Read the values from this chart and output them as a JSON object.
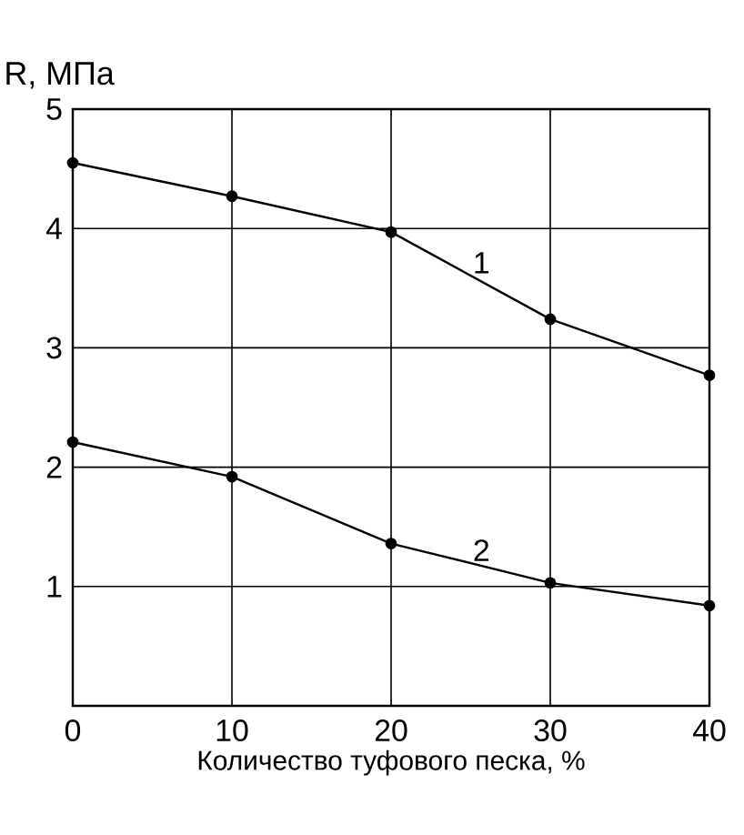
{
  "chart_data": {
    "type": "line",
    "ylabel": "R, МПа",
    "xlabel": "Количество  туфового песка, %",
    "x": [
      0,
      10,
      20,
      30,
      40
    ],
    "series": [
      {
        "name": "1",
        "color": "#000000",
        "values": [
          4.55,
          4.27,
          3.97,
          3.24,
          2.77
        ]
      },
      {
        "name": "2",
        "color": "#000000",
        "values": [
          2.21,
          1.92,
          1.36,
          1.03,
          0.84
        ]
      }
    ],
    "xlim": [
      0,
      40
    ],
    "ylim": [
      0,
      5
    ],
    "xticks": [
      0,
      10,
      20,
      30,
      40
    ],
    "yticks": [
      1,
      2,
      3,
      4,
      5
    ],
    "grid": true,
    "marker": "circle",
    "line_style": "solid"
  }
}
